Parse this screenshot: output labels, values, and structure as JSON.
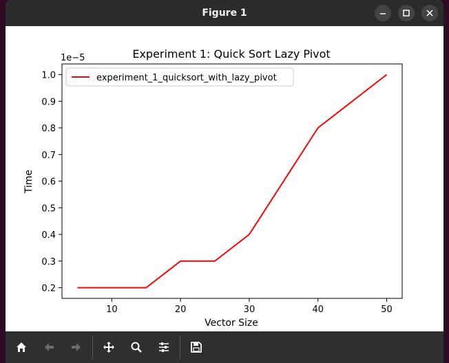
{
  "window": {
    "title": "Figure 1"
  },
  "toolbar": {
    "buttons": [
      "home-icon",
      "back-arrow-icon",
      "forward-arrow-icon",
      "pan-icon",
      "zoom-icon",
      "configure-subplots-icon",
      "save-icon"
    ]
  },
  "colors": {
    "titlebar": "#2b2b2b",
    "toolbar": "#2f2f2f",
    "series": "#ff0000"
  },
  "chart_data": {
    "type": "line",
    "title": "Experiment 1: Quick Sort Lazy Pivot",
    "xlabel": "Vector Size",
    "ylabel": "Time",
    "y_offset_label": "1e−5",
    "x_ticks": [
      10,
      20,
      30,
      40,
      50
    ],
    "y_ticks": [
      "0.2",
      "0.3",
      "0.4",
      "0.5",
      "0.6",
      "0.7",
      "0.8",
      "0.9",
      "1.0"
    ],
    "xlim": [
      2.75,
      52.25
    ],
    "ylim": [
      0.16,
      1.04
    ],
    "grid": false,
    "legend_position": "top-left",
    "series": [
      {
        "name": "experiment_1_quicksort_with_lazy_pivot",
        "color": "#ff0000",
        "x": [
          5,
          10,
          15,
          20,
          25,
          30,
          35,
          40,
          45,
          50
        ],
        "y": [
          0.2,
          0.2,
          0.2,
          0.3,
          0.3,
          0.4,
          0.6,
          0.8,
          0.9,
          1.0
        ]
      }
    ]
  }
}
